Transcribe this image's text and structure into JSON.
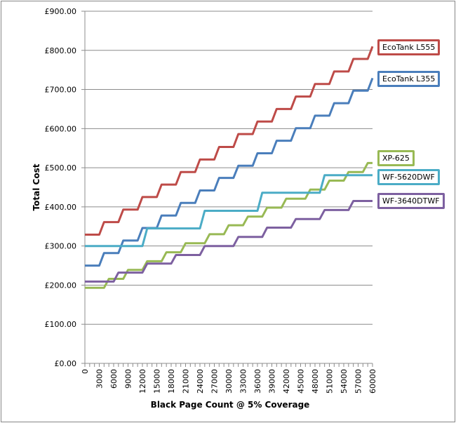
{
  "chart_data": {
    "type": "line",
    "title": "",
    "xlabel": "Black Page Count @ 5% Coverage",
    "ylabel": "Total Cost",
    "xlim": [
      0,
      60000
    ],
    "ylim": [
      0,
      900
    ],
    "x_step": 1000,
    "x_tick_labels": [
      "0",
      "3000",
      "6000",
      "9000",
      "12000",
      "15000",
      "18000",
      "21000",
      "24000",
      "27000",
      "30000",
      "33000",
      "36000",
      "39000",
      "42000",
      "45000",
      "48000",
      "51000",
      "54000",
      "57000",
      "60000"
    ],
    "y_tick_labels": [
      "£0.00",
      "£100.00",
      "£200.00",
      "£300.00",
      "£400.00",
      "£500.00",
      "£600.00",
      "£700.00",
      "£800.00",
      "£900.00"
    ],
    "grid": true,
    "legend": "series labels at right end of lines",
    "series": [
      {
        "name": "EcoTank L555",
        "color": "#BE4B48",
        "start": 329,
        "steps": [
          [
            4000,
            361
          ],
          [
            8000,
            393
          ],
          [
            12000,
            425
          ],
          [
            16000,
            457
          ],
          [
            20000,
            489
          ],
          [
            24000,
            521
          ],
          [
            28000,
            553
          ],
          [
            32000,
            586
          ],
          [
            36000,
            618
          ],
          [
            40000,
            650
          ],
          [
            44000,
            682
          ],
          [
            48000,
            714
          ],
          [
            52000,
            746
          ],
          [
            56000,
            778
          ],
          [
            60000,
            810
          ]
        ]
      },
      {
        "name": "EcoTank L355",
        "color": "#4A7EBB",
        "start": 250,
        "steps": [
          [
            4000,
            282
          ],
          [
            8000,
            314
          ],
          [
            12000,
            346
          ],
          [
            16000,
            378
          ],
          [
            20000,
            410
          ],
          [
            24000,
            442
          ],
          [
            28000,
            474
          ],
          [
            32000,
            505
          ],
          [
            36000,
            537
          ],
          [
            40000,
            569
          ],
          [
            44000,
            601
          ],
          [
            48000,
            633
          ],
          [
            52000,
            665
          ],
          [
            56000,
            697
          ],
          [
            60000,
            729
          ]
        ]
      },
      {
        "name": "XP-625",
        "color": "#98B954",
        "start": 193,
        "steps": [
          [
            5000,
            216
          ],
          [
            9000,
            239
          ],
          [
            13000,
            261
          ],
          [
            17000,
            284
          ],
          [
            21000,
            307
          ],
          [
            26000,
            330
          ],
          [
            30000,
            353
          ],
          [
            34000,
            375
          ],
          [
            38000,
            398
          ],
          [
            42000,
            421
          ],
          [
            47000,
            444
          ],
          [
            51000,
            467
          ],
          [
            55000,
            489
          ],
          [
            59000,
            512
          ]
        ]
      },
      {
        "name": "WF-5620DWF",
        "color": "#4BACC6",
        "start": 300,
        "steps": [
          [
            13000,
            345
          ],
          [
            25000,
            390
          ],
          [
            37000,
            436
          ],
          [
            50000,
            481
          ]
        ]
      },
      {
        "name": "WF-3640DTWF",
        "color": "#7D60A0",
        "start": 209,
        "steps": [
          [
            7000,
            232
          ],
          [
            13000,
            255
          ],
          [
            19000,
            277
          ],
          [
            25000,
            300
          ],
          [
            32000,
            323
          ],
          [
            38000,
            347
          ],
          [
            44000,
            369
          ],
          [
            50000,
            392
          ],
          [
            56000,
            415
          ]
        ]
      }
    ]
  }
}
